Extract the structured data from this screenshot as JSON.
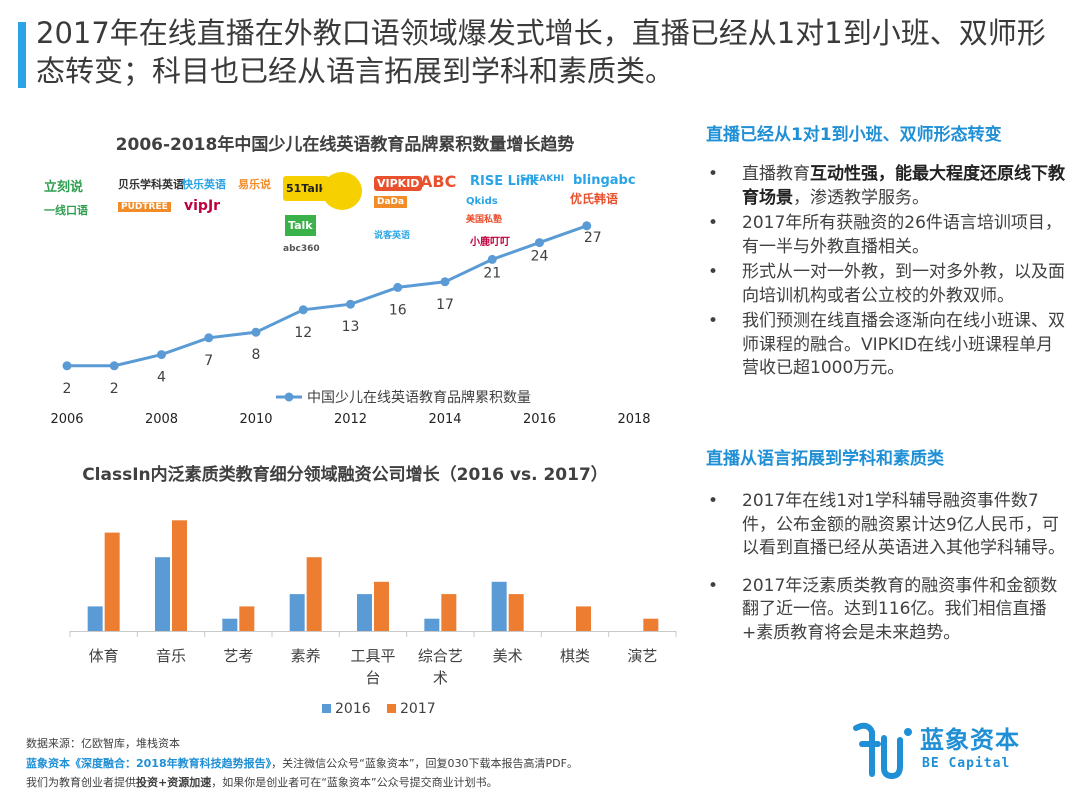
{
  "page_title": "2017年在线直播在外教口语领域爆发式增长，直播已经从1对1到小班、双师形态转变；科目也已经从语言拓展到学科和素质类。",
  "colors": {
    "accent": "#2aa4e6",
    "series_2016": "#5b9bd5",
    "series_2017": "#ed7d31",
    "brand": "#1f8fd6"
  },
  "chart_data": [
    {
      "type": "line",
      "title": "2006-2018年中国少儿在线英语教育品牌累积数量增长趋势",
      "x": [
        2006,
        2007,
        2008,
        2009,
        2010,
        2011,
        2012,
        2013,
        2014,
        2015,
        2016,
        2017
      ],
      "series": [
        {
          "name": "中国少儿在线英语教育品牌累积数量",
          "values": [
            2,
            2,
            4,
            7,
            8,
            12,
            13,
            16,
            17,
            21,
            24,
            27
          ]
        }
      ],
      "xticks": [
        "2006",
        "2008",
        "2010",
        "2012",
        "2014",
        "2016",
        "2018"
      ],
      "xlim": [
        2006,
        2018
      ],
      "legend": "bottom-right"
    },
    {
      "type": "bar",
      "title": "ClassIn内泛素质类教育细分领域融资公司增长（2016 vs. 2017）",
      "categories": [
        "体育",
        "音乐",
        "艺考",
        "素养",
        "工具平台",
        "综合艺术",
        "美术",
        "棋类",
        "演艺"
      ],
      "series": [
        {
          "name": "2016",
          "values": [
            2,
            6,
            1,
            3,
            3,
            1,
            4,
            0,
            0
          ]
        },
        {
          "name": "2017",
          "values": [
            8,
            9,
            2,
            6,
            4,
            3,
            3,
            2,
            1
          ]
        }
      ],
      "legend": "bottom"
    }
  ],
  "logos": [
    "立刻说",
    "贝乐学科英语",
    "快乐英语",
    "易乐说",
    "51Talk",
    "VIPKID",
    "ABC",
    "RISE Link",
    "SPEAKHI",
    "blingabc",
    "一线口语",
    "PUDTREE",
    "vipJr",
    "Talk",
    "abc360",
    "DaDa",
    "说客英语",
    "Qkids",
    "美国私塾",
    "优氏韩语",
    "小鹿叮叮"
  ],
  "right": {
    "section1_title": "直播已经从1对1到小班、双师形态转变",
    "section1_bullets": [
      {
        "pre": "直播教育",
        "bold": "互动性强，能最大程度还原线下教育场景",
        "post": "，渗透教学服务。"
      },
      {
        "pre": "2017年所有获融资的26件语言培训项目，有一半与外教直播相关。",
        "bold": "",
        "post": ""
      },
      {
        "pre": "形式从一对一外教，到一对多外教，以及面向培训机构或者公立校的外教双师。",
        "bold": "",
        "post": ""
      },
      {
        "pre": "我们预测在线直播会逐渐向在线小班课、双师课程的融合。VIPKID在线小班课程单月营收已超1000万元。",
        "bold": "",
        "post": ""
      }
    ],
    "section2_title": "直播从语言拓展到学科和素质类",
    "section2_bullets": [
      {
        "pre": "2017年在线1对1学科辅导融资事件数7件，公布金额的融资累计达9亿人民币，可以看到直播已经从英语进入其他学科辅导。",
        "bold": "",
        "post": ""
      },
      {
        "pre": "2017年泛素质类教育的融资事件和金额数翻了近一倍。达到116亿。我们相信直播+素质教育将会是未来趋势。",
        "bold": "",
        "post": ""
      }
    ]
  },
  "footer": {
    "source": "数据来源：亿欧智库，堆栈资本",
    "line2_link": "蓝象资本《深度融合：2018年教育科技趋势报告》",
    "line2_rest": "，关注微信公众号“蓝象资本”，回复030下载本报告高清PDF。",
    "line3_pre": "我们为教育创业者提供",
    "line3_bold": "投资+资源加速",
    "line3_post": "，如果你是创业者可在“蓝象资本”公众号提交商业计划书。"
  },
  "brand": {
    "name_cn": "蓝象资本",
    "name_en": "BE Capital"
  }
}
